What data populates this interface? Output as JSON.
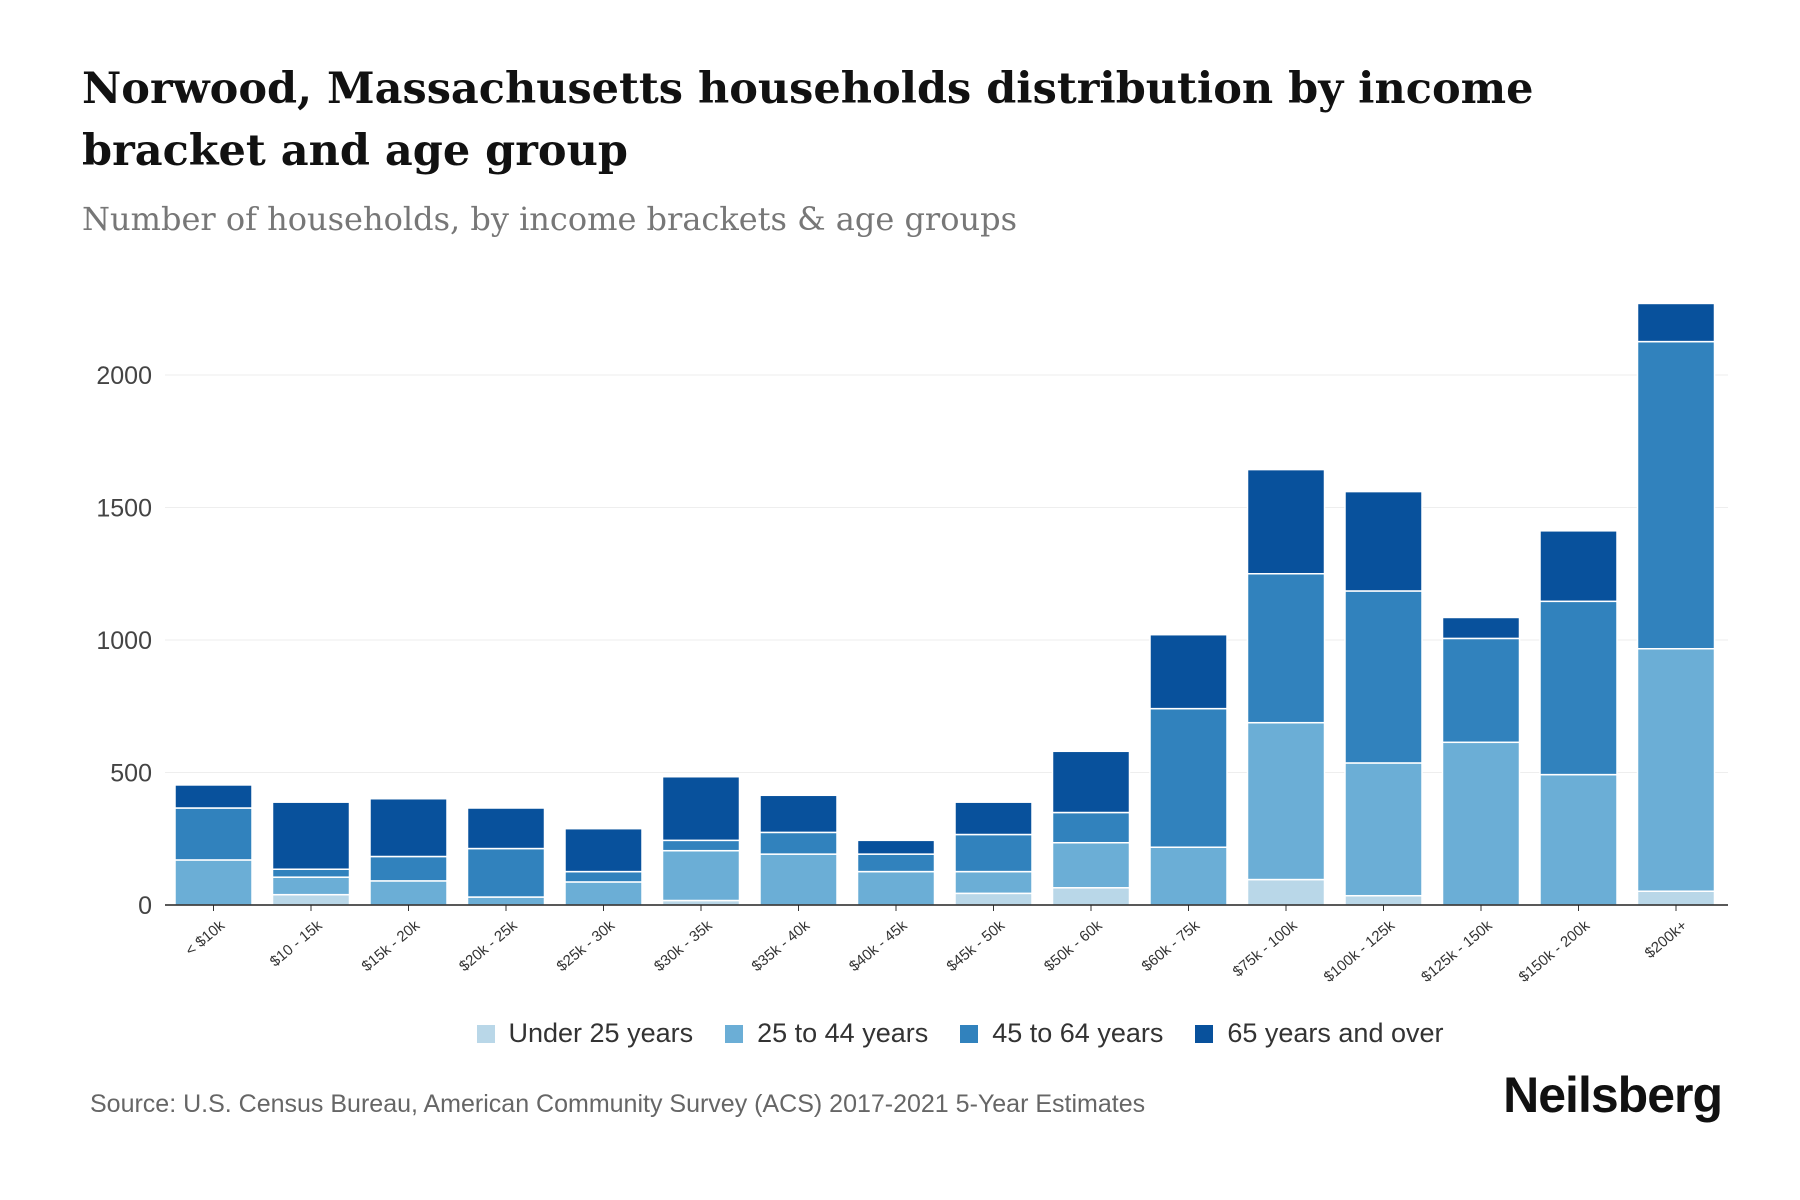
{
  "title": "Norwood, Massachusetts households distribution by income bracket and age group",
  "subtitle": "Number of households, by income brackets & age groups",
  "source": "Source: U.S. Census Bureau, American Community Survey (ACS) 2017-2021 5-Year Estimates",
  "logo": "Neilsberg",
  "chart_data": {
    "type": "bar",
    "stacked": true,
    "title": "Norwood, Massachusetts households distribution by income bracket and age group",
    "xlabel": "",
    "ylabel": "Number of households",
    "ylim": [
      0,
      2300
    ],
    "yticks": [
      0,
      500,
      1000,
      1500,
      2000
    ],
    "legend_position": "bottom",
    "categories": [
      "< $10k",
      "$10 - 15k",
      "$15k - 20k",
      "$20k - 25k",
      "$25k - 30k",
      "$30k - 35k",
      "$35k - 40k",
      "$40k - 45k",
      "$45k - 50k",
      "$50k - 60k",
      "$60k - 75k",
      "$75k - 100k",
      "$100k - 125k",
      "$125k - 150k",
      "$150k - 200k",
      "$200k+"
    ],
    "series": [
      {
        "name": "Under 25 years",
        "color": "#b9d7e8",
        "values": [
          0,
          39,
          0,
          0,
          0,
          17,
          0,
          0,
          44,
          65,
          0,
          96,
          35,
          0,
          0,
          52
        ]
      },
      {
        "name": "25 to 44 years",
        "color": "#6baed6",
        "values": [
          170,
          66,
          91,
          30,
          87,
          188,
          192,
          126,
          82,
          170,
          218,
          592,
          501,
          614,
          492,
          915
        ]
      },
      {
        "name": "45 to 64 years",
        "color": "#3182bd",
        "values": [
          196,
          30,
          92,
          183,
          39,
          39,
          82,
          66,
          140,
          114,
          523,
          562,
          649,
          392,
          654,
          1159
        ]
      },
      {
        "name": "65 years and over",
        "color": "#08519c",
        "values": [
          87,
          253,
          218,
          153,
          162,
          240,
          140,
          52,
          122,
          231,
          279,
          393,
          375,
          79,
          266,
          144
        ]
      }
    ]
  }
}
